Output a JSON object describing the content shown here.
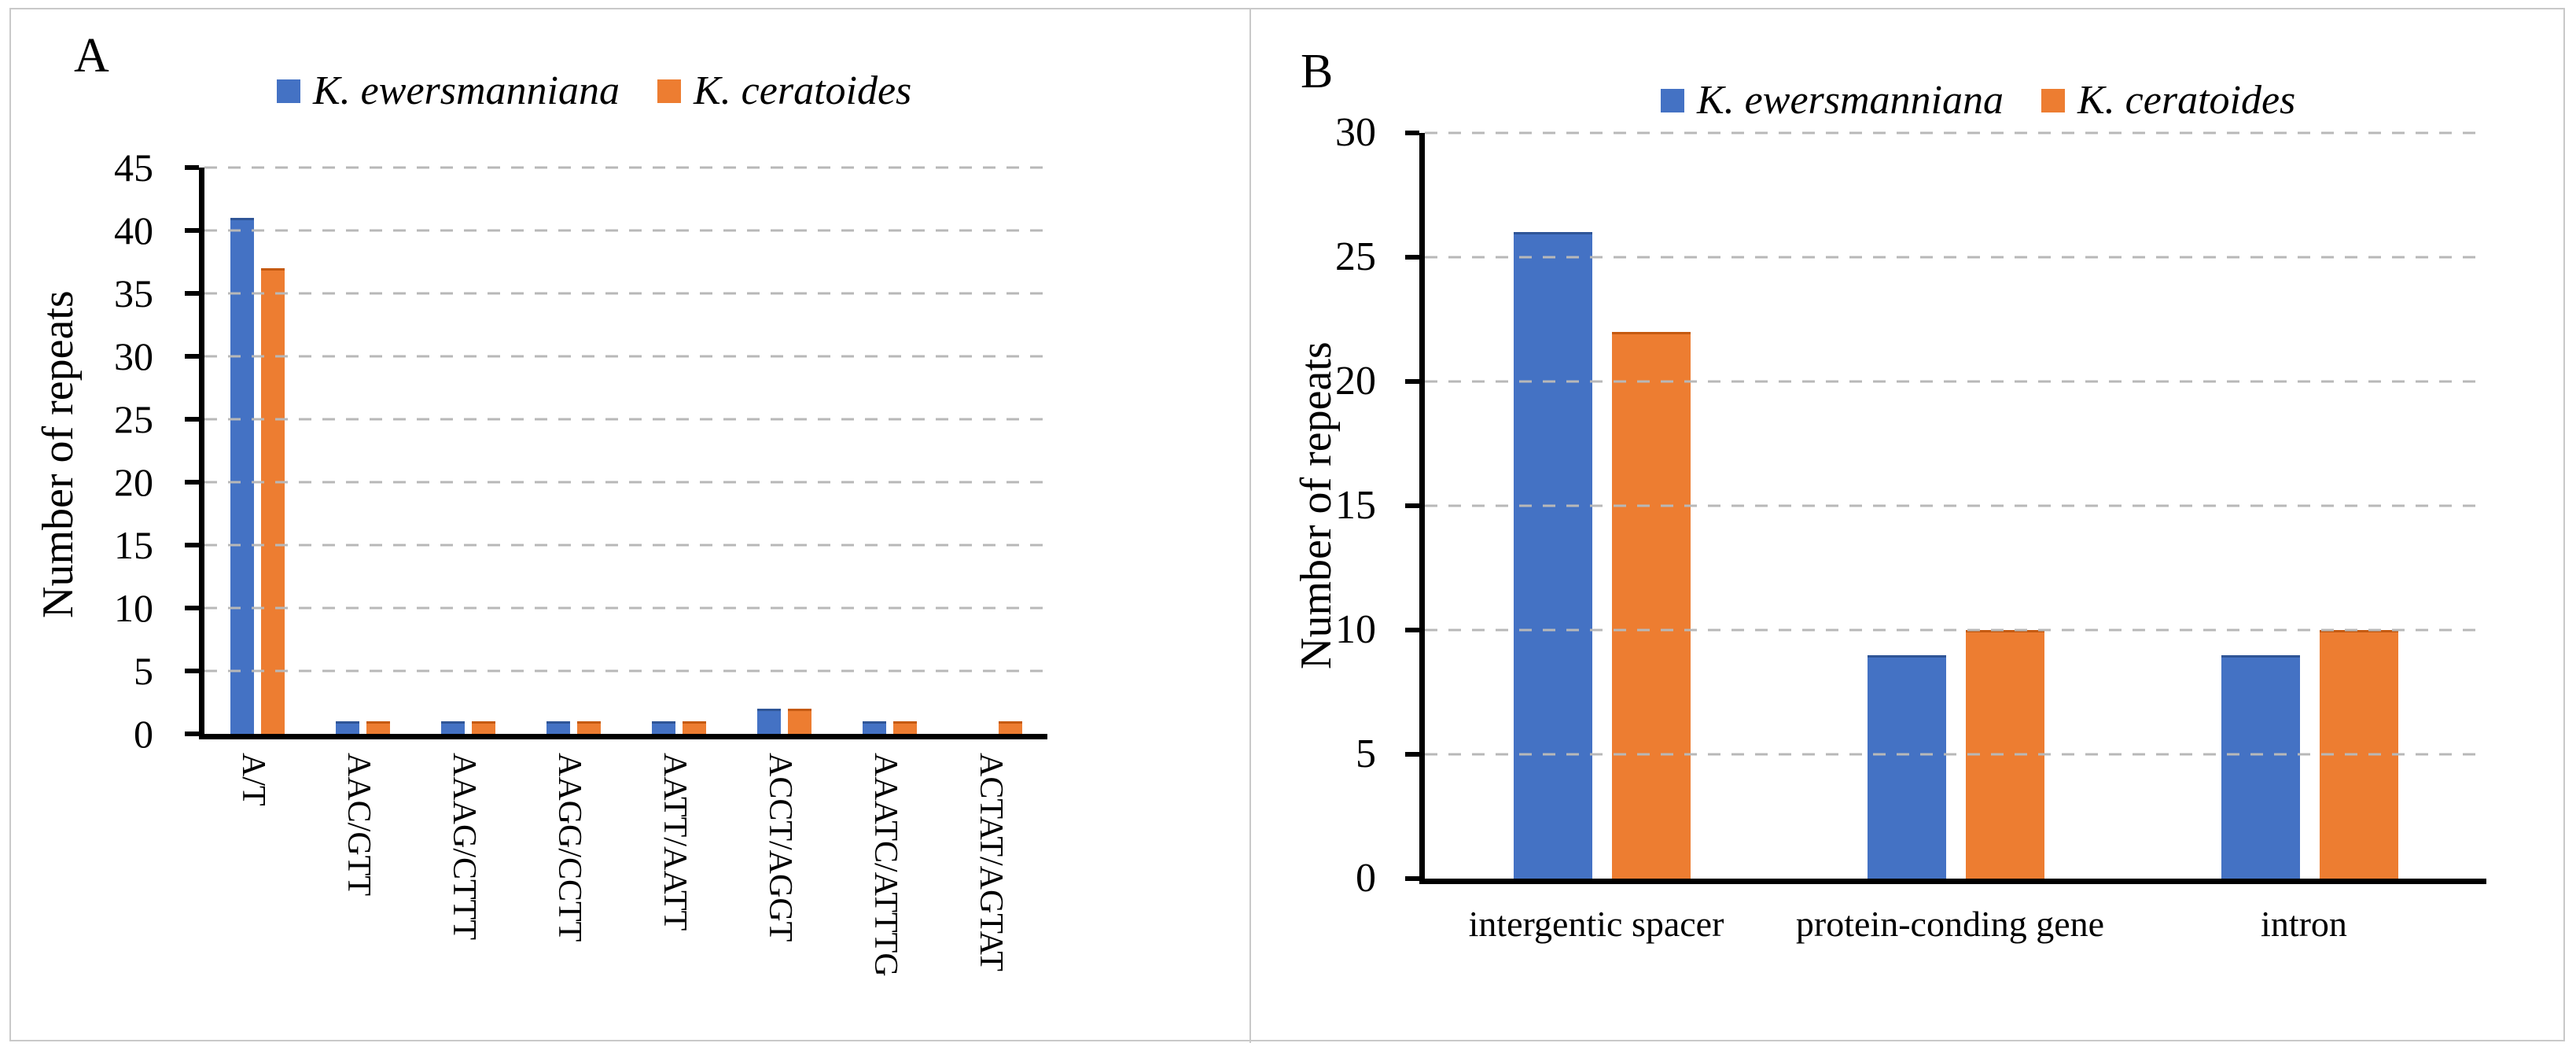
{
  "figure": {
    "background": "#ffffff",
    "border_color": "#c9c9c9"
  },
  "colors": {
    "series1": "#4472C4",
    "series1_edge": "#2f5597",
    "series2": "#ED7D31",
    "series2_edge": "#c55a11",
    "axis": "#000000",
    "gridline": "#b8b8b8"
  },
  "chart_data": [
    {
      "type": "bar",
      "panel_label": "A",
      "title": "",
      "xlabel": "",
      "ylabel": "Number of repeats",
      "ylim": [
        0,
        45
      ],
      "ytick_step": 5,
      "grid": "horizontal dashed",
      "legend_position": "top",
      "x_label_rotation": 90,
      "categories": [
        "A/T",
        "AAC/GTT",
        "AAAG/CTTT",
        "AAGG/CCTT",
        "AATT/AATT",
        "ACCT/AGGT",
        "AAATC/ATTTG",
        "ACTAT/AGTAT"
      ],
      "series": [
        {
          "name": "K. ewersmanniana",
          "color": "#4472C4",
          "edge": "#2f5597",
          "values": [
            41,
            1,
            1,
            1,
            1,
            2,
            1,
            0
          ]
        },
        {
          "name": "K. ceratoides",
          "color": "#ED7D31",
          "edge": "#c55a11",
          "values": [
            37,
            1,
            1,
            1,
            1,
            2,
            1,
            1
          ]
        }
      ]
    },
    {
      "type": "bar",
      "panel_label": "B",
      "title": "",
      "xlabel": "",
      "ylabel": "Number of repeats",
      "ylim": [
        0,
        30
      ],
      "ytick_step": 5,
      "grid": "horizontal dashed",
      "legend_position": "top",
      "x_label_rotation": 0,
      "categories": [
        "intergentic spacer",
        "protein-conding gene",
        "intron"
      ],
      "series": [
        {
          "name": "K. ewersmanniana",
          "color": "#4472C4",
          "edge": "#2f5597",
          "values": [
            26,
            9,
            9
          ]
        },
        {
          "name": "K. ceratoides",
          "color": "#ED7D31",
          "edge": "#c55a11",
          "values": [
            22,
            10,
            10
          ]
        }
      ]
    }
  ]
}
